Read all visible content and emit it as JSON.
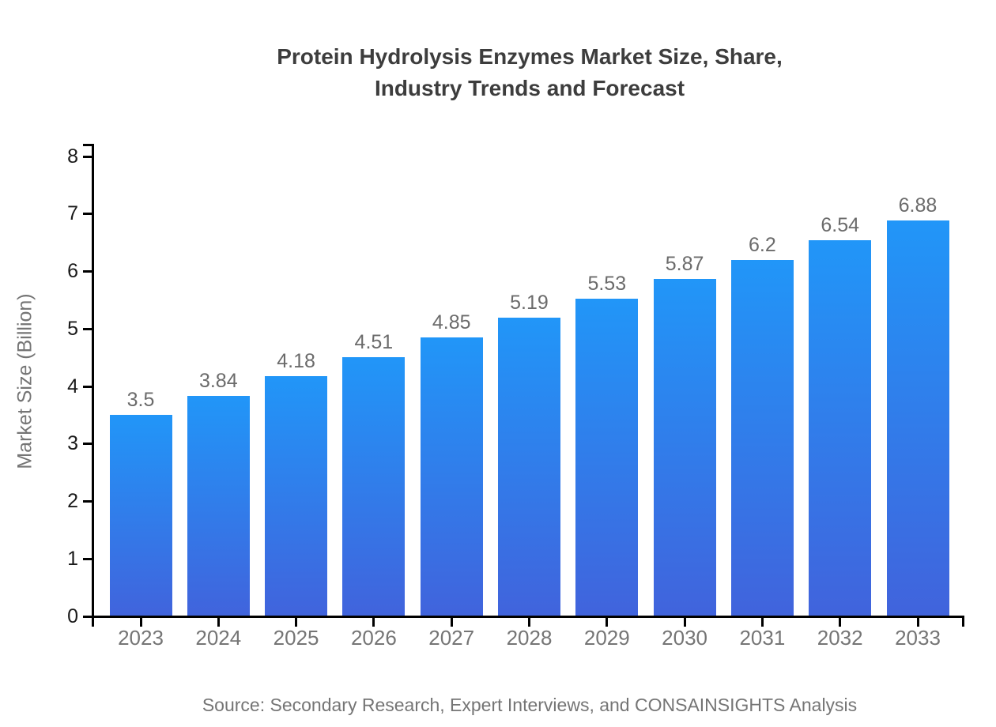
{
  "page": {
    "title_line1": "Protein Hydrolysis Enzymes Market Size, Share,",
    "title_line2": "Industry Trends and Forecast",
    "source": "Source: Secondary Research, Expert Interviews, and CONSAINSIGHTS Analysis"
  },
  "chart_data": {
    "type": "bar",
    "title": "Protein Hydrolysis Enzymes Market Size, Share, Industry Trends and Forecast",
    "categories": [
      "2023",
      "2024",
      "2025",
      "2026",
      "2027",
      "2028",
      "2029",
      "2030",
      "2031",
      "2032",
      "2033"
    ],
    "values": [
      3.5,
      3.84,
      4.18,
      4.51,
      4.85,
      5.19,
      5.53,
      5.87,
      6.2,
      6.54,
      6.88
    ],
    "value_labels": [
      "3.5",
      "3.84",
      "4.18",
      "4.51",
      "4.85",
      "5.19",
      "5.53",
      "5.87",
      "6.2",
      "6.54",
      "6.88"
    ],
    "xlabel": "",
    "ylabel": "Market Size (Billion)",
    "ylim": [
      0,
      8
    ],
    "yticks": [
      0,
      1,
      2,
      3,
      4,
      5,
      6,
      7,
      8
    ],
    "grid": false,
    "legend_position": "none",
    "colors": {
      "bar_top": "#2196f8",
      "bar_bottom": "#4163dc",
      "axis": "#000000",
      "y_tick_label": "#1a1a1a",
      "category_label": "#757575",
      "value_label": "#6b6b6b",
      "title": "#3d3d3d"
    },
    "source": "Source: Secondary Research, Expert Interviews, and CONSAINSIGHTS Analysis"
  }
}
